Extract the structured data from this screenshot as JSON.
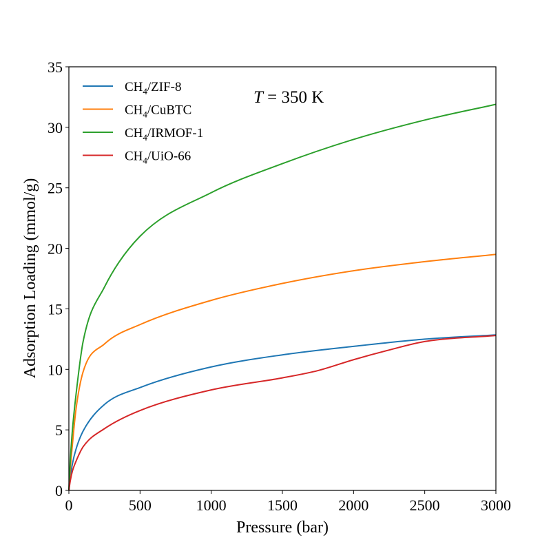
{
  "chart_data": {
    "type": "line",
    "title": "",
    "xlabel": "Pressure (bar)",
    "ylabel": "Adsorption Loading (mmol/g)",
    "xlim": [
      0,
      3000
    ],
    "ylim": [
      0,
      35
    ],
    "xticks": [
      0,
      500,
      1000,
      1500,
      2000,
      2500,
      3000
    ],
    "yticks": [
      0,
      5,
      10,
      15,
      20,
      25,
      30,
      35
    ],
    "grid": false,
    "legend_position": "top-left",
    "annotation": {
      "italic": "T",
      "text": " = 350 K"
    },
    "series": [
      {
        "name": "CH4/ZIF-8",
        "label_main": "CH",
        "label_sub": "4",
        "label_rest": "/ZIF-8",
        "color": "#1f77b4",
        "x": [
          0,
          10,
          25,
          50,
          100,
          250,
          500,
          1000,
          1500,
          2000,
          2500,
          3000
        ],
        "y": [
          0,
          1.1,
          2.2,
          3.4,
          4.9,
          7.1,
          8.5,
          10.2,
          11.2,
          11.9,
          12.5,
          12.85
        ]
      },
      {
        "name": "CH4/CuBTC",
        "label_main": "CH",
        "label_sub": "4",
        "label_rest": "/CuBTC",
        "color": "#ff7f0e",
        "x": [
          0,
          10,
          25,
          50,
          100,
          250,
          500,
          1000,
          1500,
          2000,
          2500,
          3000
        ],
        "y": [
          0,
          1.8,
          3.8,
          6.7,
          9.8,
          12.1,
          13.7,
          15.7,
          17.1,
          18.15,
          18.9,
          19.5
        ]
      },
      {
        "name": "CH4/IRMOF-1",
        "label_main": "CH",
        "label_sub": "4",
        "label_rest": "/IRMOF-1",
        "color": "#2ca02c",
        "x": [
          0,
          10,
          25,
          50,
          100,
          250,
          500,
          1000,
          1500,
          2000,
          2500,
          3000
        ],
        "y": [
          0,
          2.5,
          5.0,
          7.9,
          12.3,
          16.8,
          21.0,
          24.6,
          27.0,
          29.0,
          30.6,
          31.9
        ]
      },
      {
        "name": "CH4/UiO-66",
        "label_main": "CH",
        "label_sub": "4",
        "label_rest": "/UiO-66",
        "color": "#d62728",
        "x": [
          0,
          10,
          25,
          50,
          100,
          250,
          500,
          1000,
          1500,
          1750,
          2000,
          2250,
          2500,
          3000
        ],
        "y": [
          0,
          0.8,
          1.6,
          2.4,
          3.6,
          5.1,
          6.6,
          8.3,
          9.3,
          9.9,
          10.8,
          11.6,
          12.3,
          12.8
        ]
      }
    ]
  }
}
